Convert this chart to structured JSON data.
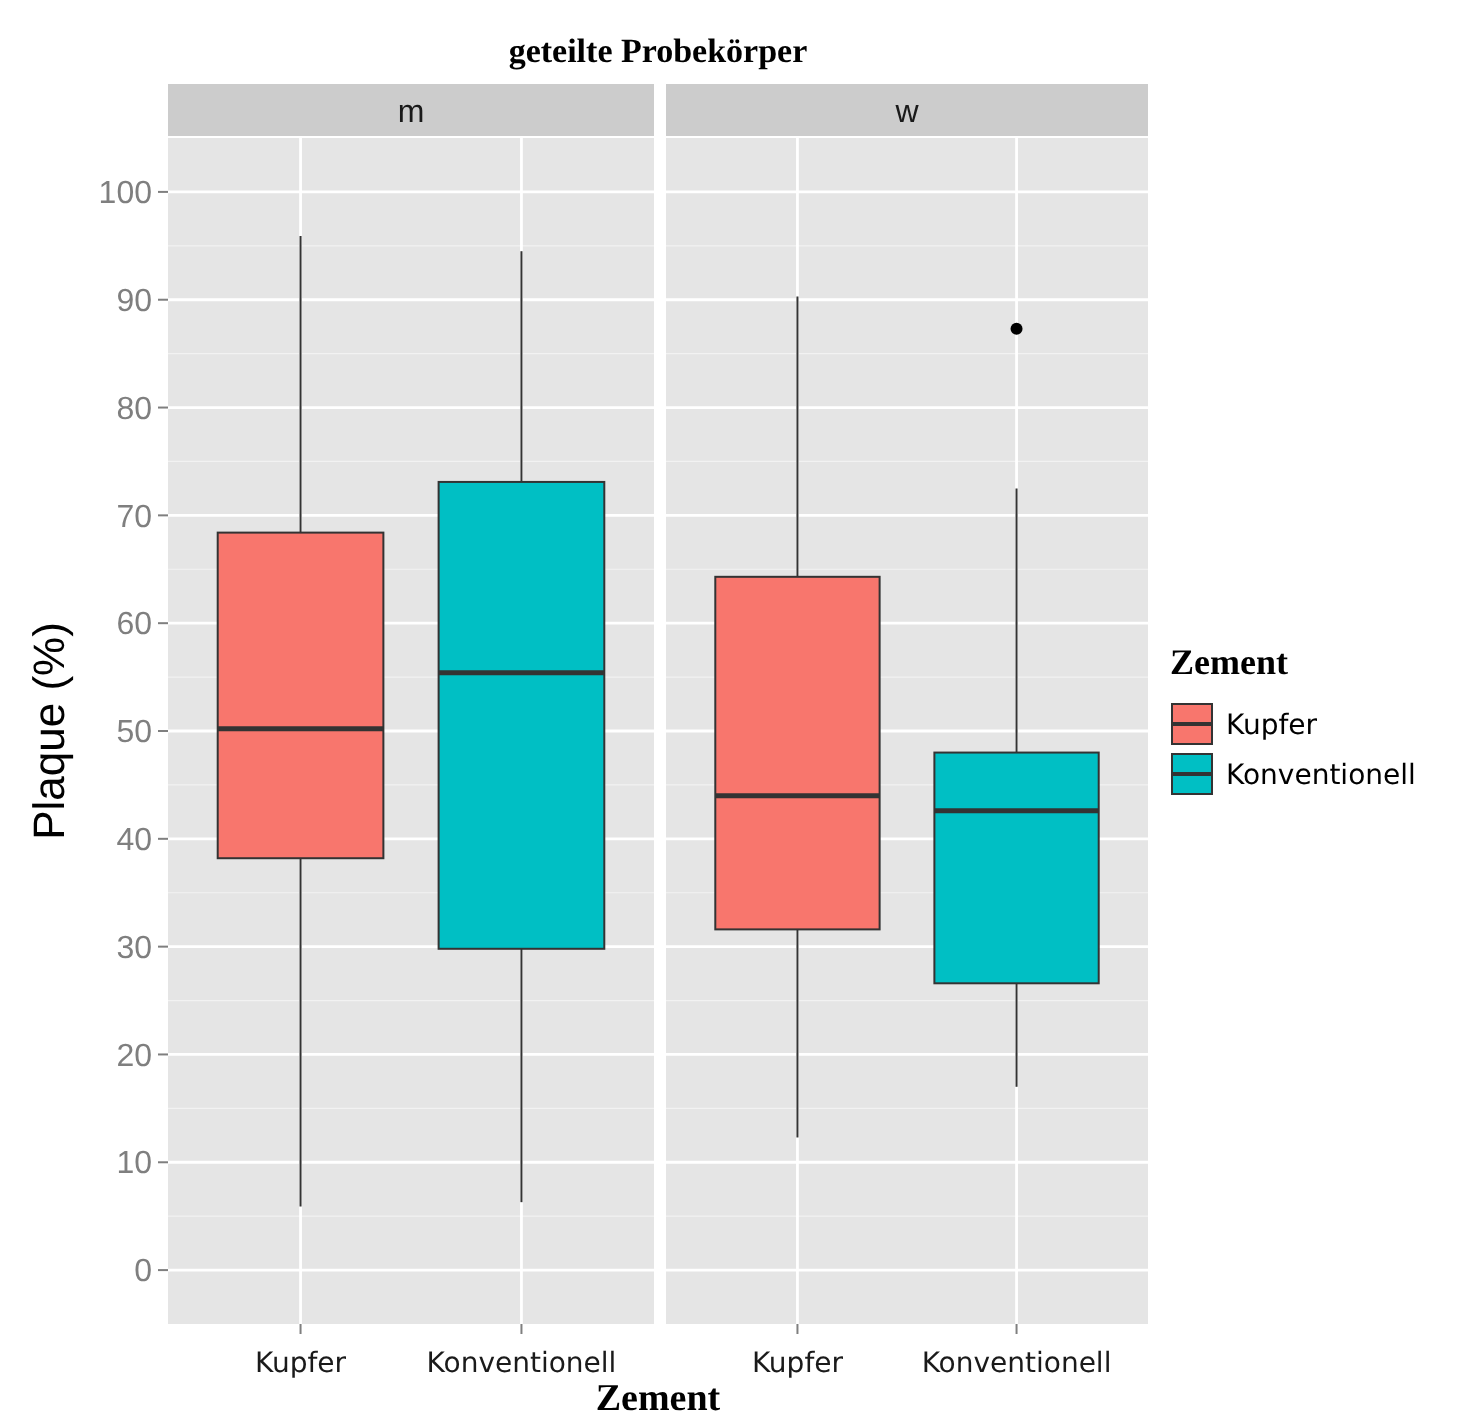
{
  "chart_data": [
    {
      "type": "box",
      "title": "geteilte Probekörper",
      "subtitle": "m",
      "xlabel": "Zement",
      "ylabel": "Plaque (%)",
      "categories": [
        "Kupfer",
        "Konventionell"
      ],
      "ylim": [
        -5,
        105
      ],
      "yticks": [
        0,
        10,
        20,
        30,
        40,
        50,
        60,
        70,
        80,
        90,
        100
      ],
      "grid": true,
      "legend": false,
      "series": [
        {
          "color": "#f8766d",
          "boxes": [
            {
              "low": 5.9,
              "q1": 38.2,
              "median": 50.2,
              "q3": 68.4,
              "high": 95.9
            },
            null
          ]
        },
        {
          "color": "#00bfc4",
          "boxes": [
            null,
            {
              "low": 6.3,
              "q1": 29.8,
              "median": 55.4,
              "q3": 73.1,
              "high": 94.5
            }
          ]
        }
      ]
    },
    {
      "type": "box",
      "subtitle": "w",
      "legend_title": "Zement",
      "categories": [
        "Kupfer",
        "Konventionell"
      ],
      "ylim": [
        -5,
        105
      ],
      "yticks": [
        0,
        10,
        20,
        30,
        40,
        50,
        60,
        70,
        80,
        90,
        100
      ],
      "grid": true,
      "legend": "right",
      "tick_labels": "x",
      "series": [
        {
          "name": "Kupfer",
          "color": "#f8766d",
          "boxes": [
            {
              "low": 12.3,
              "q1": 31.6,
              "median": 44.0,
              "q3": 64.3,
              "high": 90.3
            },
            null
          ]
        },
        {
          "name": "Konventionell",
          "color": "#00bfc4",
          "boxes": [
            null,
            {
              "low": 17.0,
              "q1": 26.6,
              "median": 42.6,
              "q3": 48.0,
              "high": 72.5,
              "outliers": [
                87.3
              ]
            }
          ]
        }
      ]
    }
  ]
}
